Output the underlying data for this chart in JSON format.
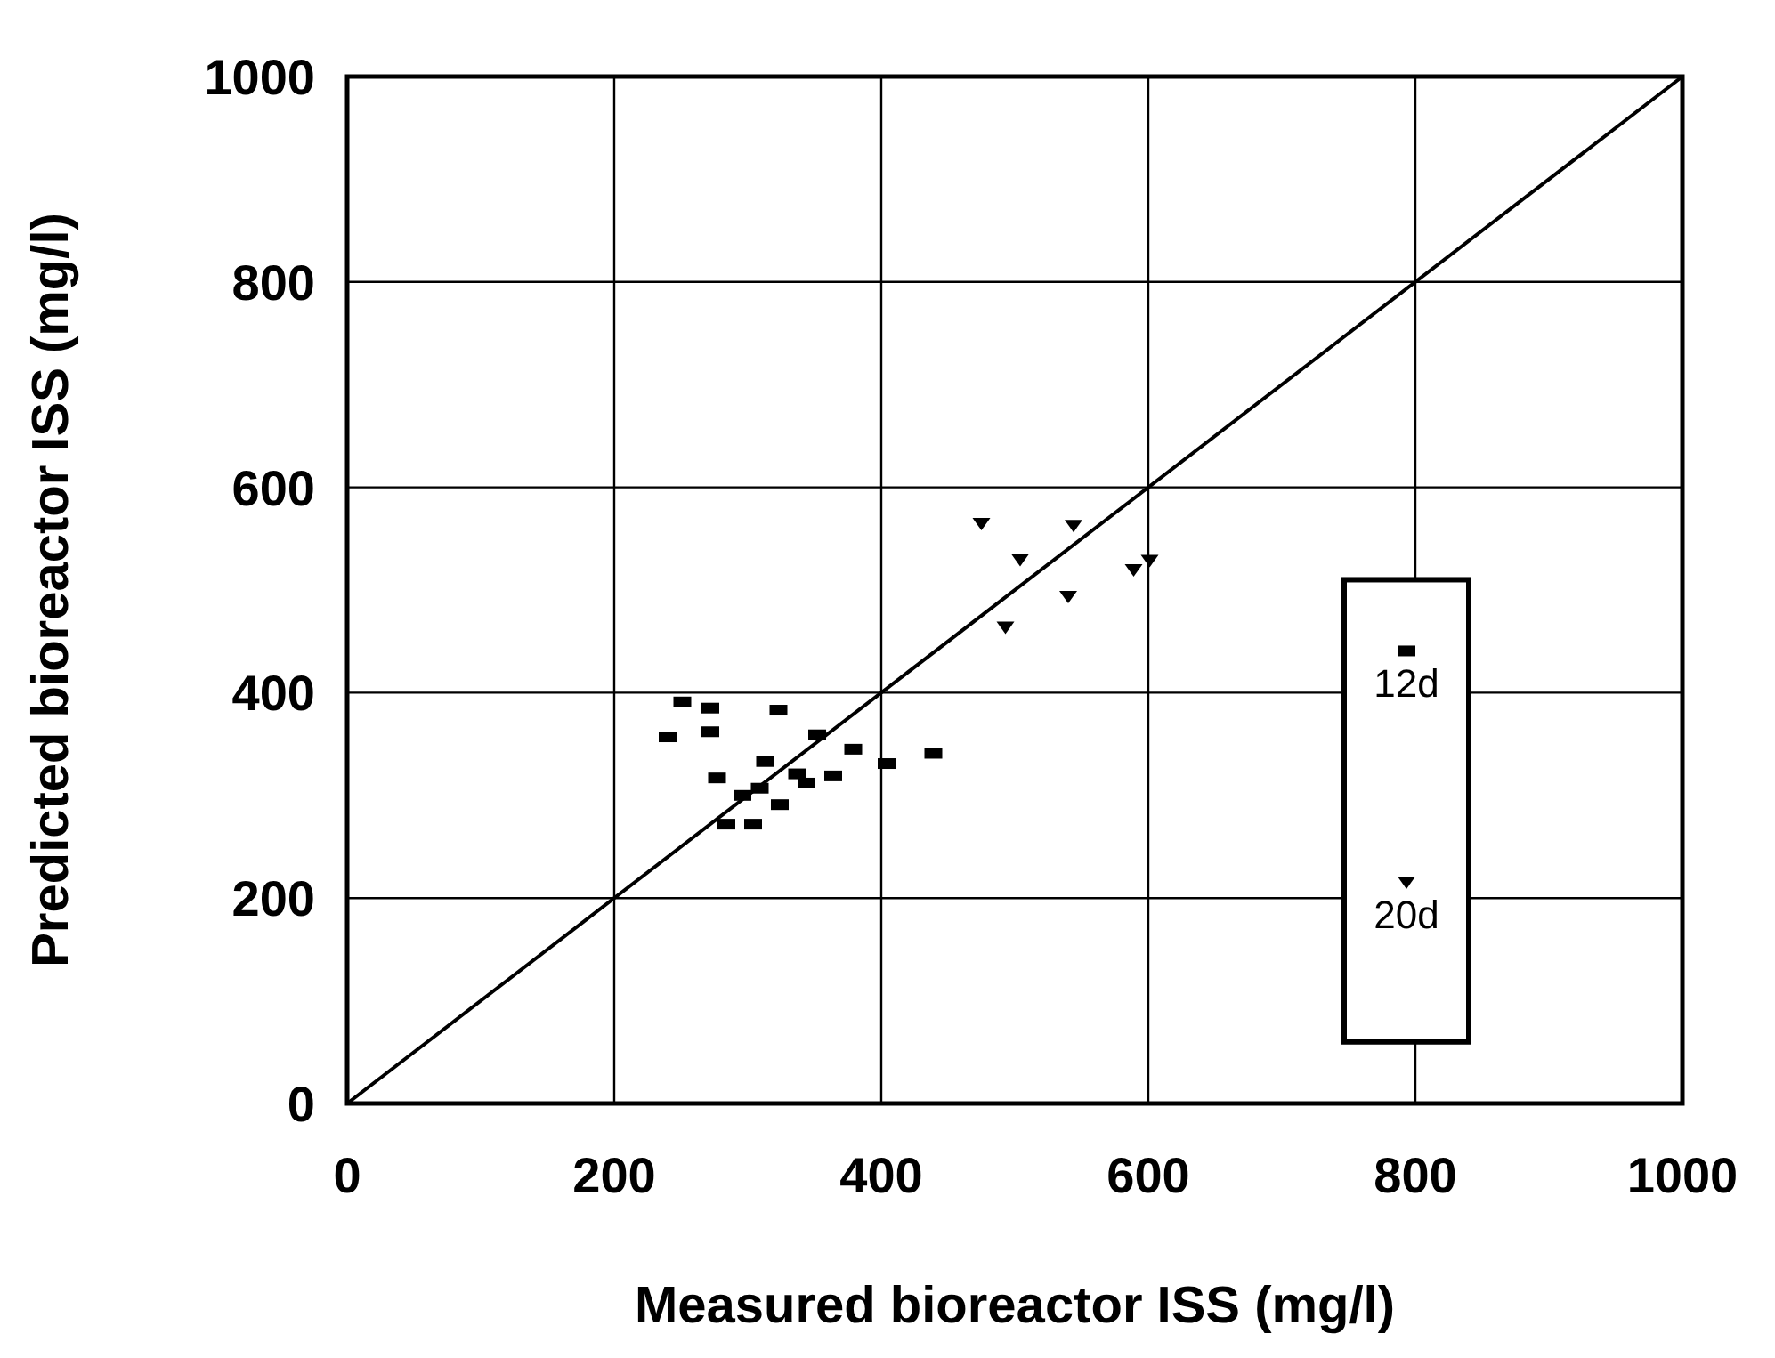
{
  "chart_data": {
    "type": "scatter",
    "xlabel": "Measured bioreactor ISS (mg/l)",
    "ylabel": "Predicted bioreactor ISS (mg/l)",
    "xlim": [
      0,
      1000
    ],
    "ylim": [
      0,
      1000
    ],
    "xticks": [
      0,
      200,
      400,
      600,
      800,
      1000
    ],
    "yticks": [
      0,
      200,
      400,
      600,
      800,
      1000
    ],
    "grid": true,
    "legend": "right",
    "series": [
      {
        "name": "12d",
        "color": "#000000",
        "marker": "square",
        "x": [
          251,
          272,
          323,
          240,
          272,
          352,
          379,
          439,
          404,
          313,
          364,
          277,
          337,
          344,
          296,
          309,
          324,
          284,
          304
        ],
        "values": [
          391,
          385,
          383,
          357,
          362,
          359,
          345,
          341,
          331,
          333,
          319,
          317,
          321,
          312,
          300,
          307,
          291,
          272,
          272
        ]
      },
      {
        "name": "20d",
        "color": "#000000",
        "marker": "triangle",
        "x": [
          475,
          544,
          504,
          589,
          601,
          540,
          493
        ],
        "values": [
          565,
          563,
          530,
          520,
          529,
          494,
          464
        ]
      },
      {
        "type": "line",
        "color": "#000000",
        "marker": "none",
        "x": [
          0,
          1000
        ],
        "values": [
          0,
          1000
        ]
      }
    ]
  }
}
